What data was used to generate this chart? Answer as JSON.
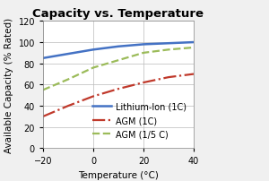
{
  "title": "Capacity vs. Temperature",
  "xlabel": "Temperature (°C)",
  "ylabel": "Available Capacity (% Rated)",
  "xlim": [
    -20,
    40
  ],
  "ylim": [
    0,
    120
  ],
  "xticks": [
    -20,
    0,
    20,
    40
  ],
  "yticks": [
    0,
    20,
    40,
    60,
    80,
    100,
    120
  ],
  "series": [
    {
      "label": "Lithium-Ion (1C)",
      "x": [
        -20,
        -10,
        0,
        10,
        20,
        30,
        40
      ],
      "y": [
        85,
        89,
        93,
        96,
        98,
        99,
        100
      ],
      "color": "#4472C4",
      "linestyle": "-",
      "linewidth": 1.8
    },
    {
      "label": "AGM (1C)",
      "x": [
        -20,
        -10,
        0,
        10,
        20,
        30,
        40
      ],
      "y": [
        30,
        40,
        49,
        56,
        62,
        67,
        70
      ],
      "color": "#C0392B",
      "linestyle": "-.",
      "linewidth": 1.6
    },
    {
      "label": "AGM (1/5 C)",
      "x": [
        -20,
        -10,
        0,
        10,
        20,
        30,
        40
      ],
      "y": [
        55,
        65,
        76,
        83,
        90,
        93,
        95
      ],
      "color": "#9BBB59",
      "linestyle": "--",
      "linewidth": 1.6
    }
  ],
  "background_color": "#F0F0F0",
  "plot_bg_color": "#FFFFFF",
  "title_fontsize": 9.5,
  "label_fontsize": 7.5,
  "tick_fontsize": 7,
  "legend_fontsize": 7
}
